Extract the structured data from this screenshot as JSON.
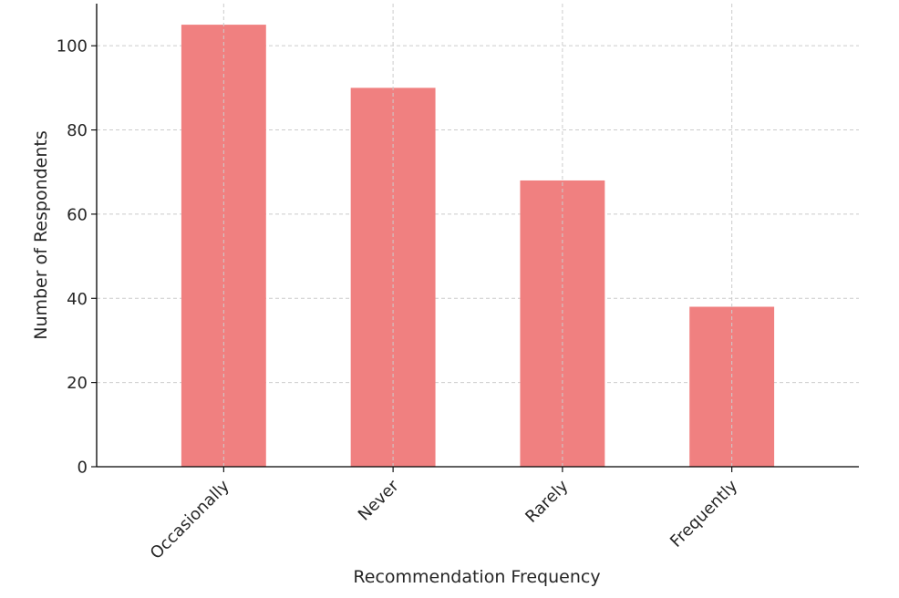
{
  "chart_data": {
    "type": "bar",
    "title": "",
    "xlabel": "Recommendation Frequency",
    "ylabel": "Number of Respondents",
    "categories": [
      "Occasionally",
      "Never",
      "Rarely",
      "Frequently"
    ],
    "values": [
      105,
      90,
      68,
      38
    ],
    "ylim": [
      0,
      110
    ],
    "yticks": [
      0,
      20,
      40,
      60,
      80,
      100
    ],
    "grid": true,
    "bar_color": "#f08080",
    "x_tick_rotation": -45
  }
}
